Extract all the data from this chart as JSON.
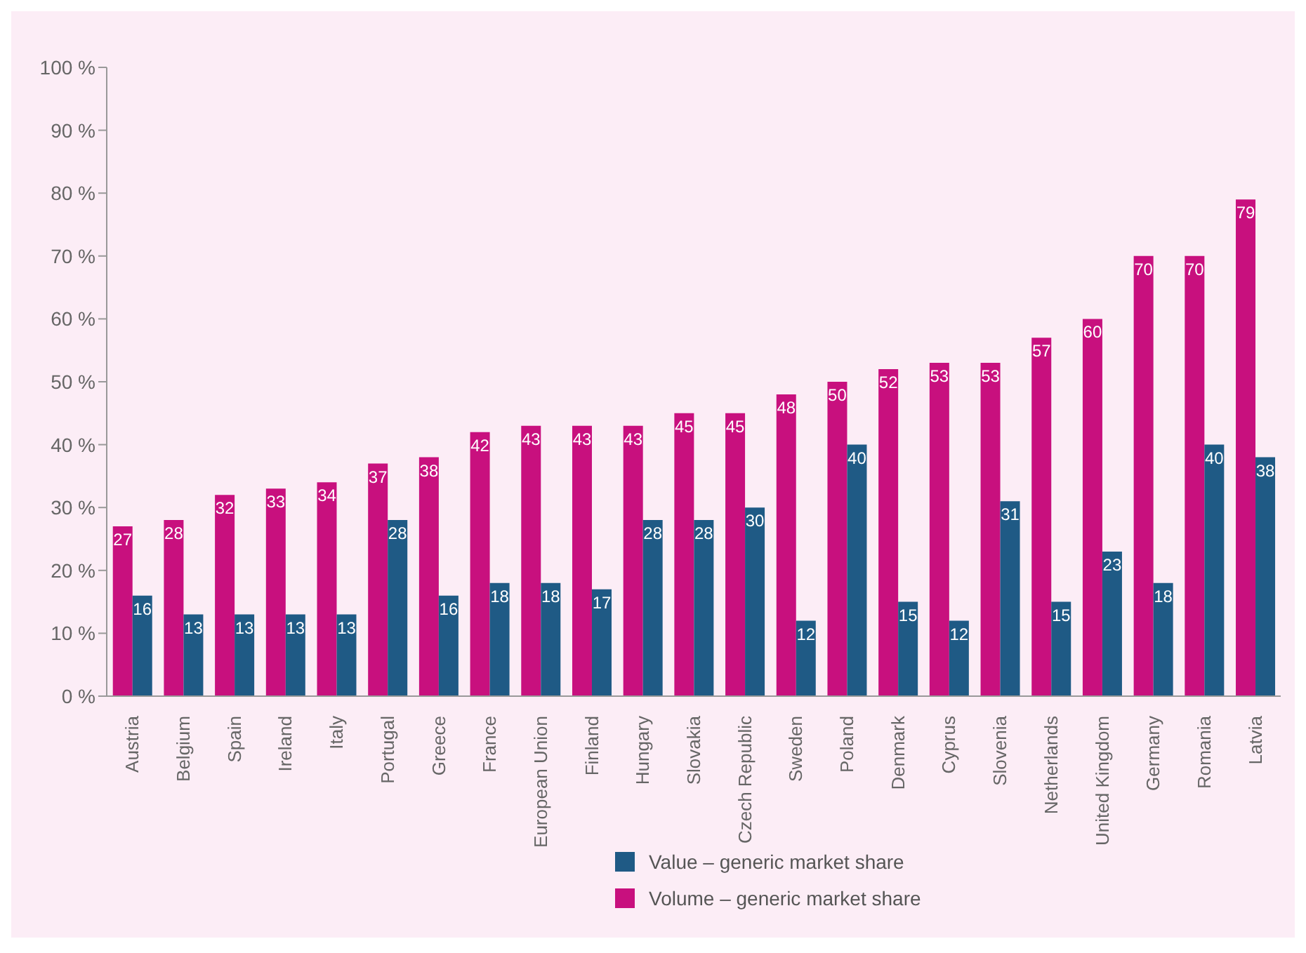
{
  "chart_data": {
    "type": "bar",
    "categories": [
      "Austria",
      "Belgium",
      "Spain",
      "Ireland",
      "Italy",
      "Portugal",
      "Greece",
      "France",
      "European Union",
      "Finland",
      "Hungary",
      "Slovakia",
      "Czech Republic",
      "Sweden",
      "Poland",
      "Denmark",
      "Cyprus",
      "Slovenia",
      "Netherlands",
      "United Kingdom",
      "Germany",
      "Romania",
      "Latvia"
    ],
    "series": [
      {
        "name": "Volume – generic market share",
        "color": "#c8107e",
        "values": [
          27,
          28,
          32,
          33,
          34,
          37,
          38,
          42,
          43,
          43,
          43,
          45,
          45,
          48,
          50,
          52,
          53,
          53,
          57,
          60,
          70,
          70,
          79
        ]
      },
      {
        "name": "Value – generic market share",
        "color": "#1f5a85",
        "values": [
          16,
          13,
          13,
          13,
          13,
          28,
          16,
          18,
          18,
          17,
          28,
          28,
          30,
          12,
          40,
          15,
          12,
          31,
          15,
          23,
          18,
          40,
          38
        ]
      }
    ],
    "ylim": [
      0,
      100
    ],
    "yticks": [
      {
        "value": 0,
        "label": "0 %"
      },
      {
        "value": 10,
        "label": "10 %"
      },
      {
        "value": 20,
        "label": "20 %"
      },
      {
        "value": 30,
        "label": "30 %"
      },
      {
        "value": 40,
        "label": "40 %"
      },
      {
        "value": 50,
        "label": "50 %"
      },
      {
        "value": 60,
        "label": "60 %"
      },
      {
        "value": 70,
        "label": "70 %"
      },
      {
        "value": 80,
        "label": "80 %"
      },
      {
        "value": 90,
        "label": "90 %"
      },
      {
        "value": 100,
        "label": "100 %"
      }
    ],
    "data_labels": true,
    "grid": false,
    "legend": "bottom"
  }
}
